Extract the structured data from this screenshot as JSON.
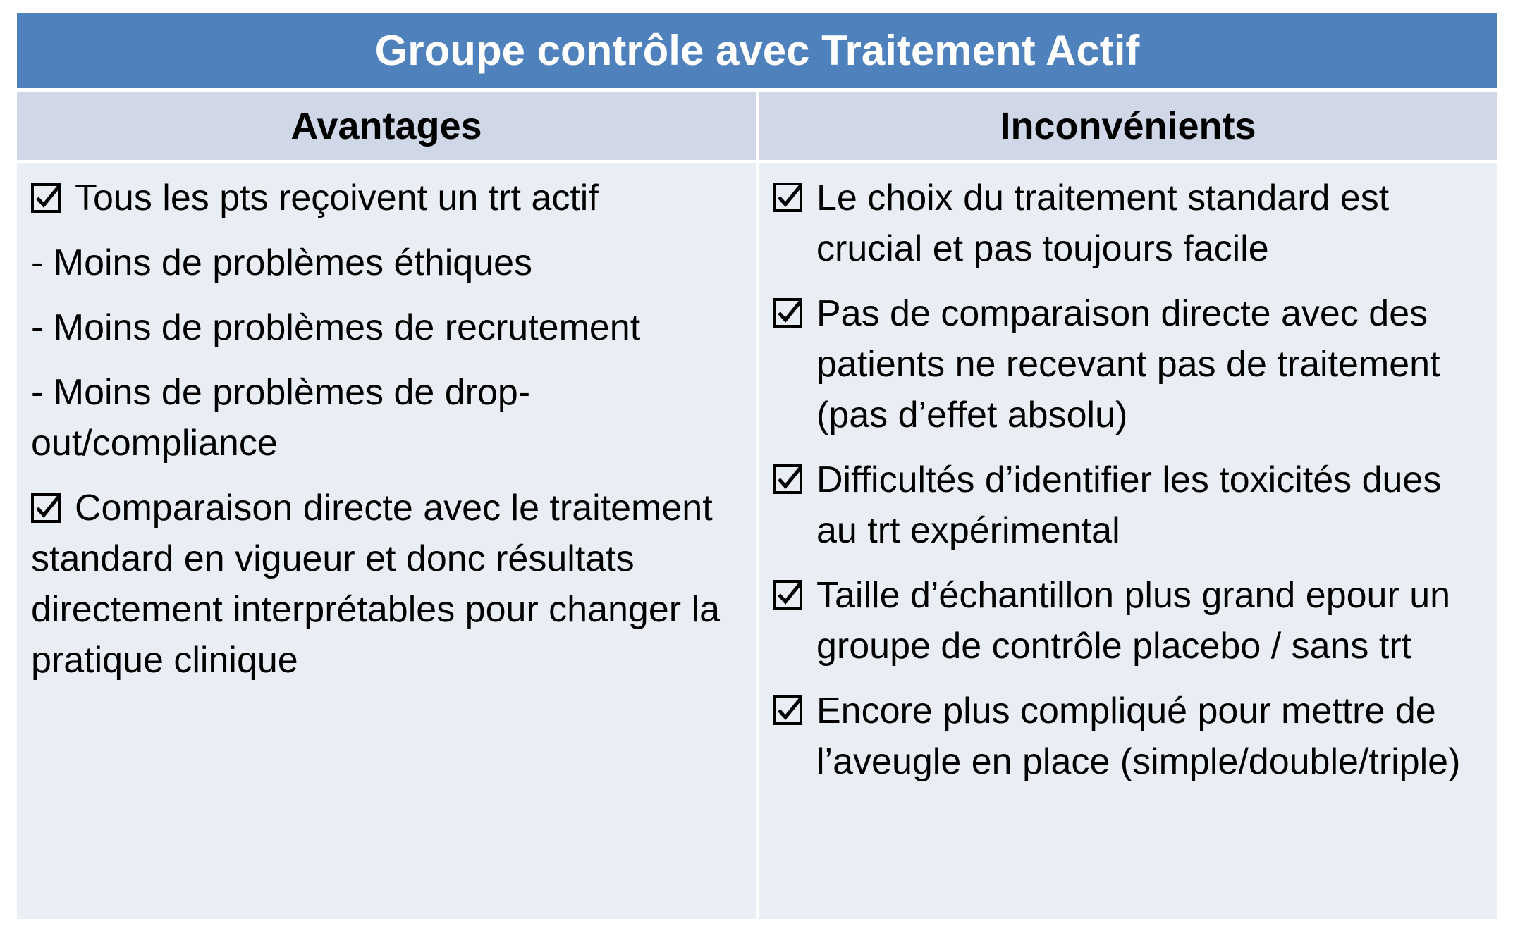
{
  "title": "Groupe contrôle avec Traitement Actif",
  "columns": {
    "left": {
      "header": "Avantages",
      "items": [
        {
          "type": "check",
          "text": "Tous les pts reçoivent un trt actif"
        },
        {
          "type": "dash",
          "text": "- Moins de problèmes éthiques"
        },
        {
          "type": "dash",
          "text": "- Moins de problèmes de recrutement"
        },
        {
          "type": "dash",
          "text": "- Moins de problèmes de drop-out/compliance"
        },
        {
          "type": "check",
          "text": "Comparaison directe avec le traitement standard en vigueur et donc résultats directement interprétables pour changer la pratique clinique"
        }
      ]
    },
    "right": {
      "header": "Inconvénients",
      "items": [
        {
          "type": "check",
          "text": "Le choix du traitement standard est crucial et pas toujours facile"
        },
        {
          "type": "check",
          "text": "Pas de comparaison directe avec des patients ne recevant pas de traitement (pas d’effet absolu)"
        },
        {
          "type": "check",
          "text": "Difficultés d’identifier les toxicités dues au trt expérimental"
        },
        {
          "type": "check",
          "text": "Taille d’échantillon plus grand epour un groupe de contrôle placebo / sans trt"
        },
        {
          "type": "check",
          "text": "Encore plus compliqué pour mettre de l’aveugle en place (simple/double/triple)"
        }
      ]
    }
  },
  "icons": {
    "bullet": "checked-box-icon"
  },
  "colors": {
    "title_bg": "#4f81bd",
    "header_bg": "#d0d8e8",
    "body_bg": "#e9edf4"
  }
}
